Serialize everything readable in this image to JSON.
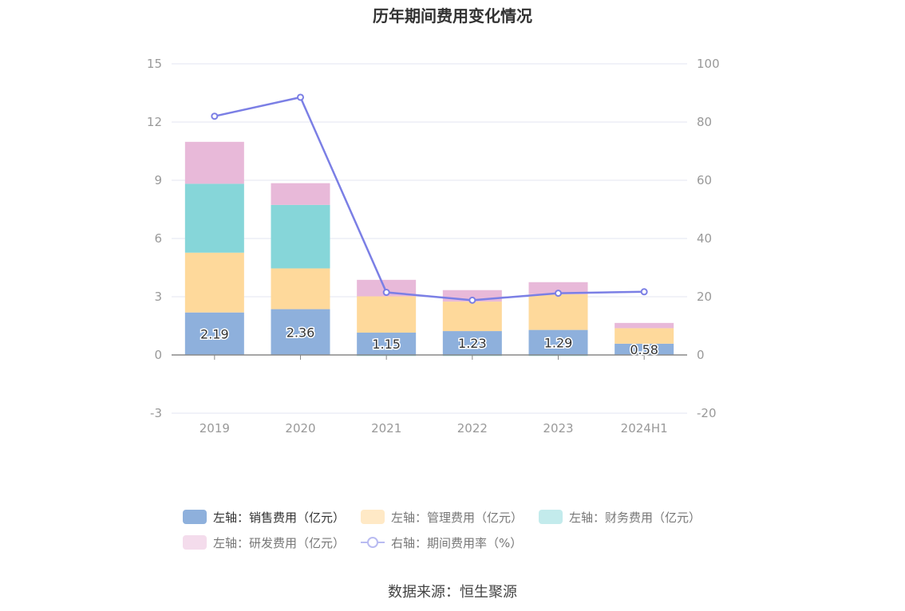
{
  "source": "数据来源：恒生聚源",
  "chart_data": {
    "type": "bar",
    "title": "历年期间费用变化情况",
    "categories": [
      "2019",
      "2020",
      "2021",
      "2022",
      "2023",
      "2024H1"
    ],
    "y_left": {
      "min": -3,
      "max": 15,
      "ticks": [
        "-3",
        "0",
        "3",
        "6",
        "9",
        "12",
        "15"
      ]
    },
    "y_right": {
      "min": -20,
      "max": 100,
      "ticks": [
        "-20",
        "0",
        "20",
        "40",
        "60",
        "80",
        "100"
      ]
    },
    "grid": true,
    "legend_position": "bottom",
    "series": [
      {
        "name": "左轴：销售费用（亿元）",
        "type": "bar",
        "axis": "left",
        "color": "#8eb0dc",
        "values": [
          2.19,
          2.36,
          1.15,
          1.23,
          1.29,
          0.58
        ],
        "labels": [
          "2.19",
          "2.36",
          "1.15",
          "1.23",
          "1.29",
          "0.58"
        ]
      },
      {
        "name": "左轴：管理费用（亿元）",
        "type": "bar",
        "axis": "left",
        "color": "#fed99b",
        "values": [
          3.08,
          2.1,
          1.87,
          1.52,
          1.84,
          0.8
        ]
      },
      {
        "name": "左轴：财务费用（亿元）",
        "type": "bar",
        "axis": "left",
        "color": "#86d6d9",
        "values": [
          3.55,
          3.27,
          -0.05,
          -0.05,
          -0.05,
          -0.02
        ]
      },
      {
        "name": "左轴：研发费用（亿元）",
        "type": "bar",
        "axis": "left",
        "color": "#e8b9d9",
        "values": [
          2.16,
          1.12,
          0.85,
          0.59,
          0.62,
          0.27
        ]
      },
      {
        "name": "右轴：期间费用率（%）",
        "type": "line",
        "axis": "right",
        "color": "#7b7fe5",
        "values": [
          82,
          88.5,
          21.5,
          18.8,
          21.2,
          21.7
        ]
      }
    ]
  }
}
